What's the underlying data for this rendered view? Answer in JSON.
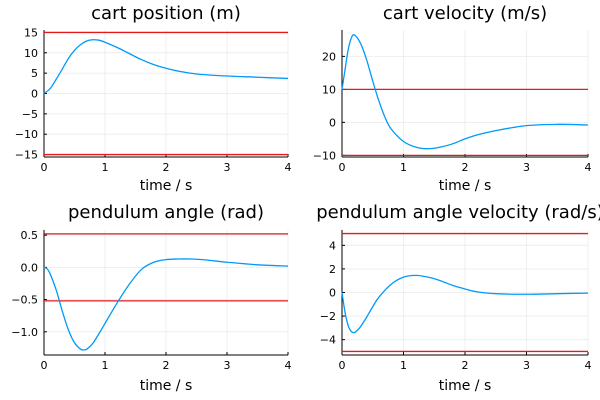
{
  "chart_data": [
    {
      "type": "line",
      "title": "cart position (m)",
      "xlabel": "time / s",
      "ylabel": "",
      "xlim": [
        0,
        4
      ],
      "ylim": [
        -15.6,
        15.6
      ],
      "xticks": [
        0,
        1,
        2,
        3,
        4
      ],
      "xtick_labels": [
        "0",
        "1",
        "2",
        "3",
        "4"
      ],
      "yticks": [
        15,
        10,
        5,
        0,
        -5,
        -10,
        -15
      ],
      "ytick_labels": [
        "15",
        "10",
        "5",
        "0",
        "−10",
        "−15"
      ],
      "ytick_labels_all": [
        "15",
        "10",
        "5",
        "0",
        "−5",
        "−10",
        "−15"
      ],
      "grid": true,
      "legend": "none",
      "limits": [
        15,
        -15
      ],
      "series": [
        {
          "color": "#009af9",
          "x": [
            0,
            0.1,
            0.2,
            0.3,
            0.4,
            0.5,
            0.6,
            0.7,
            0.8,
            0.9,
            1.0,
            1.2,
            1.4,
            1.6,
            1.8,
            2.0,
            2.2,
            2.5,
            3.0,
            3.5,
            4.0
          ],
          "y": [
            0,
            1.2,
            3.5,
            6.0,
            8.6,
            10.6,
            12.0,
            12.9,
            13.2,
            13.1,
            12.6,
            11.3,
            9.8,
            8.3,
            7.1,
            6.2,
            5.5,
            4.8,
            4.3,
            4.0,
            3.7
          ]
        }
      ]
    },
    {
      "type": "line",
      "title": "cart velocity (m/s)",
      "xlabel": "time / s",
      "ylabel": "",
      "xlim": [
        0,
        4
      ],
      "ylim": [
        -10.5,
        28
      ],
      "xticks": [
        0,
        1,
        2,
        3,
        4
      ],
      "xtick_labels": [
        "0",
        "1",
        "2",
        "3",
        "4"
      ],
      "yticks": [
        20,
        10,
        0,
        -10
      ],
      "ytick_labels": [
        "20",
        "10",
        "0",
        "−10"
      ],
      "grid": true,
      "legend": "none",
      "limits": [
        10,
        -10
      ],
      "series": [
        {
          "color": "#009af9",
          "x": [
            0,
            0.05,
            0.1,
            0.15,
            0.2,
            0.3,
            0.4,
            0.5,
            0.6,
            0.7,
            0.8,
            1.0,
            1.2,
            1.4,
            1.6,
            1.8,
            2.0,
            2.2,
            2.5,
            3.0,
            3.5,
            4.0
          ],
          "y": [
            10,
            16,
            22,
            25.5,
            26.5,
            24,
            19,
            12.5,
            6.5,
            1.5,
            -2,
            -5.8,
            -7.5,
            -8,
            -7.5,
            -6.5,
            -5,
            -3.8,
            -2.5,
            -1,
            -0.6,
            -0.8
          ]
        }
      ]
    },
    {
      "type": "line",
      "title": "pendulum angle (rad)",
      "xlabel": "time / s",
      "ylabel": "",
      "xlim": [
        0,
        4
      ],
      "ylim": [
        -1.36,
        0.58
      ],
      "xticks": [
        0,
        1,
        2,
        3,
        4
      ],
      "xtick_labels": [
        "0",
        "1",
        "2",
        "3",
        "4"
      ],
      "yticks": [
        0.5,
        0,
        -0.5,
        -1
      ],
      "ytick_labels": [
        "0.5",
        "0.0",
        "−0.5",
        "−1.0"
      ],
      "grid": true,
      "legend": "none",
      "limits": [
        0.52,
        -0.52
      ],
      "series": [
        {
          "color": "#009af9",
          "x": [
            0,
            0.05,
            0.1,
            0.2,
            0.3,
            0.4,
            0.5,
            0.6,
            0.65,
            0.7,
            0.8,
            0.9,
            1.0,
            1.2,
            1.4,
            1.6,
            1.8,
            2.0,
            2.2,
            2.4,
            2.6,
            2.8,
            3.0,
            3.5,
            4.0
          ],
          "y": [
            0,
            -0.02,
            -0.1,
            -0.35,
            -0.68,
            -0.97,
            -1.17,
            -1.27,
            -1.28,
            -1.27,
            -1.18,
            -1.03,
            -0.87,
            -0.55,
            -0.26,
            -0.03,
            0.08,
            0.12,
            0.13,
            0.13,
            0.12,
            0.1,
            0.08,
            0.04,
            0.02
          ]
        }
      ]
    },
    {
      "type": "line",
      "title": "pendulum angle velocity (rad/s)",
      "xlabel": "time / s",
      "ylabel": "",
      "xlim": [
        0,
        4
      ],
      "ylim": [
        -5.3,
        5.3
      ],
      "xticks": [
        0,
        1,
        2,
        3,
        4
      ],
      "xtick_labels": [
        "0",
        "1",
        "2",
        "3",
        "4"
      ],
      "yticks": [
        4,
        2,
        0,
        -2,
        -4
      ],
      "ytick_labels": [
        "4",
        "2",
        "0",
        "−2",
        "−4"
      ],
      "grid": true,
      "legend": "none",
      "limits": [
        5,
        -5
      ],
      "series": [
        {
          "color": "#009af9",
          "x": [
            0,
            0.05,
            0.1,
            0.15,
            0.2,
            0.25,
            0.3,
            0.4,
            0.5,
            0.6,
            0.8,
            1.0,
            1.2,
            1.4,
            1.6,
            1.8,
            2.0,
            2.2,
            2.5,
            3.0,
            3.5,
            4.0
          ],
          "y": [
            0,
            -1.7,
            -2.8,
            -3.3,
            -3.4,
            -3.2,
            -2.9,
            -2.1,
            -1.2,
            -0.4,
            0.7,
            1.3,
            1.45,
            1.3,
            1.0,
            0.6,
            0.3,
            0.05,
            -0.1,
            -0.15,
            -0.1,
            -0.05
          ]
        }
      ]
    }
  ]
}
